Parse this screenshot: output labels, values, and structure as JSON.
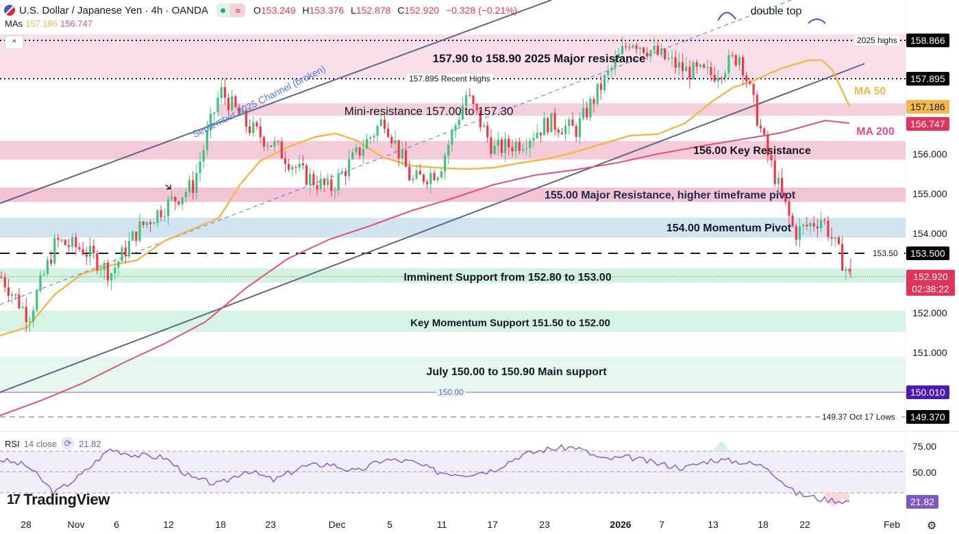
{
  "header": {
    "symbol_title": "U.S. Dollar / Japanese Yen · 4h · OANDA",
    "status_icons": [
      "market-open-dot",
      "approx-icon"
    ],
    "ohlc": {
      "o_label": "O",
      "o": "153.249",
      "h_label": "H",
      "h": "153.376",
      "l_label": "L",
      "l": "152.878",
      "c_label": "C",
      "c": "152.920",
      "change": "−0.328 (−0.21%)"
    },
    "mas_label": "MAs",
    "ma50_value": "157.186",
    "ma200_value": "156.747",
    "collapse_glyph": "^"
  },
  "colors": {
    "up": "#26a69a",
    "down": "#f23645",
    "ma50": "#f2b84b",
    "ma200": "#e0507a",
    "resistance_zone": "#f5c6d6",
    "pivot_zone": "#cfe2f3",
    "support_zone": "#d4f3e4",
    "rsi": "#7e57c2"
  },
  "annotations": {
    "double_top": "double top",
    "channel": "September 2025 Channel (broken)",
    "major_res": "157.90 to 158.90 2025 Major resistance",
    "mini_res": "Mini-resistance 157.00 to 157.30",
    "key_res": "156.00 Key Resistance",
    "major_pivot": "155.00 Major Resistance, higher timeframe pivot",
    "momentum_pivot": "154.00 Momentum Pivot",
    "imminent_support": "Imminent Support from 152.80 to 153.00",
    "key_momentum_support": "Key Momentum Support 151.50 to 152.00",
    "main_support": "July 150.00 to 150.90 Main support",
    "ma50": "MA 50",
    "ma200": "MA 200",
    "highs_2025": "2025 highs",
    "recent_highs": "157.895 Recent Highs",
    "level_15350": "153.50",
    "level_150": "150.00",
    "oct_lows": "149.37 Oct 17 Lows"
  },
  "price_axis": {
    "ticks": [
      "156.000",
      "155.000",
      "154.000",
      "152.000",
      "151.000"
    ],
    "tags": {
      "highs_2025": "158.866",
      "recent_highs": "157.895",
      "ma50": "157.186",
      "ma200": "156.747",
      "level_15350": "153.500",
      "last_price": "152.920",
      "countdown": "02:38:22",
      "level_150": "150.010",
      "oct_lows": "149.370"
    }
  },
  "time_axis": {
    "labels": [
      "28",
      "Nov",
      "6",
      "12",
      "18",
      "23",
      "Dec",
      "5",
      "11",
      "17",
      "23",
      "2026",
      "7",
      "13",
      "18",
      "22",
      "Feb"
    ]
  },
  "rsi": {
    "label": "RSI",
    "params": "14 close",
    "value": "21.82",
    "ticks": [
      "75.00",
      "50.00"
    ],
    "tag": "21.82"
  },
  "branding": {
    "logo_text": "TradingView",
    "logo_mark": "17"
  },
  "chart_data": {
    "type": "candlestick",
    "title": "U.S. Dollar / Japanese Yen · 4h · OANDA",
    "timeframe": "4h",
    "last": {
      "open": 153.249,
      "high": 153.376,
      "low": 152.878,
      "close": 152.92,
      "change": -0.328,
      "change_pct": -0.21
    },
    "x_ticks": [
      "28",
      "Nov",
      "6",
      "12",
      "18",
      "23",
      "Dec",
      "5",
      "11",
      "17",
      "23",
      "2026",
      "7",
      "13",
      "18",
      "22",
      "Feb"
    ],
    "y_ticks": [
      151.0,
      152.0,
      154.0,
      155.0,
      156.0
    ],
    "ylim": [
      149.0,
      159.3
    ],
    "close_path_approx": [
      {
        "x": "Oct 27",
        "close": 152.9
      },
      {
        "x": "Oct 29",
        "close": 151.9
      },
      {
        "x": "Oct 31",
        "close": 153.8
      },
      {
        "x": "Nov 4",
        "close": 153.6
      },
      {
        "x": "Nov 6",
        "close": 153.0
      },
      {
        "x": "Nov 10",
        "close": 154.1
      },
      {
        "x": "Nov 13",
        "close": 154.7
      },
      {
        "x": "Nov 17",
        "close": 155.2
      },
      {
        "x": "Nov 20",
        "close": 157.6
      },
      {
        "x": "Nov 24",
        "close": 156.7
      },
      {
        "x": "Nov 27",
        "close": 156.2
      },
      {
        "x": "Dec 2",
        "close": 155.5
      },
      {
        "x": "Dec 5",
        "close": 155.1
      },
      {
        "x": "Dec 9",
        "close": 156.0
      },
      {
        "x": "Dec 11",
        "close": 156.9
      },
      {
        "x": "Dec 15",
        "close": 155.3
      },
      {
        "x": "Dec 17",
        "close": 155.6
      },
      {
        "x": "Dec 19",
        "close": 157.5
      },
      {
        "x": "Dec 23",
        "close": 156.1
      },
      {
        "x": "Dec 26",
        "close": 156.3
      },
      {
        "x": "Jan 2",
        "close": 156.8
      },
      {
        "x": "Jan 7",
        "close": 156.6
      },
      {
        "x": "Jan 9",
        "close": 157.8
      },
      {
        "x": "Jan 13",
        "close": 158.9
      },
      {
        "x": "Jan 14",
        "close": 158.5
      },
      {
        "x": "Jan 16",
        "close": 158.1
      },
      {
        "x": "Jan 19",
        "close": 158.0
      },
      {
        "x": "Jan 22",
        "close": 158.5
      },
      {
        "x": "Jan 23",
        "close": 156.0
      },
      {
        "x": "Jan 26",
        "close": 154.0
      },
      {
        "x": "Jan 27",
        "close": 154.4
      },
      {
        "x": "Jan 27 (last)",
        "close": 152.92
      }
    ],
    "moving_averages": [
      {
        "name": "MA 50",
        "value": 157.186,
        "color": "#f2b84b"
      },
      {
        "name": "MA 200",
        "value": 156.747,
        "color": "#e0507a"
      }
    ],
    "zones": [
      {
        "label": "157.90 to 158.90 2025 Major resistance",
        "from": 157.9,
        "to": 158.9,
        "kind": "resistance"
      },
      {
        "label": "Mini-resistance 157.00 to 157.30",
        "from": 157.0,
        "to": 157.3,
        "kind": "resistance"
      },
      {
        "label": "156.00 Key Resistance",
        "from": 155.85,
        "to": 156.3,
        "kind": "resistance"
      },
      {
        "label": "155.00 Major Resistance, higher timeframe pivot",
        "from": 154.85,
        "to": 155.2,
        "kind": "resistance"
      },
      {
        "label": "154.00 Momentum Pivot",
        "from": 153.95,
        "to": 154.45,
        "kind": "pivot"
      },
      {
        "label": "Imminent Support from 152.80 to 153.00",
        "from": 152.8,
        "to": 153.0,
        "kind": "support"
      },
      {
        "label": "Key Momentum Support 151.50 to 152.00",
        "from": 151.5,
        "to": 152.0,
        "kind": "support"
      },
      {
        "label": "July 150.00 to 150.90 Main support",
        "from": 150.0,
        "to": 150.9,
        "kind": "support"
      }
    ],
    "horizontal_levels": [
      {
        "label": "2025 highs",
        "value": 158.866
      },
      {
        "label": "157.895 Recent Highs",
        "value": 157.895
      },
      {
        "label": "153.50",
        "value": 153.5
      },
      {
        "label": "150.00",
        "value": 150.01
      },
      {
        "label": "149.37 Oct 17 Lows",
        "value": 149.37
      }
    ],
    "pattern_annotations": [
      "double top",
      "September 2025 Channel (broken)"
    ],
    "rsi": {
      "period": 14,
      "source": "close",
      "value": 21.82,
      "levels": [
        70,
        50,
        30
      ],
      "y_ticks": [
        75.0,
        50.0
      ],
      "path_approx": [
        62,
        56,
        30,
        48,
        72,
        66,
        64,
        44,
        38,
        52,
        42,
        55,
        58,
        50,
        62,
        60,
        50,
        48,
        52,
        66,
        72,
        74,
        62,
        64,
        58,
        54,
        62,
        60,
        55,
        30,
        24,
        22
      ]
    }
  }
}
